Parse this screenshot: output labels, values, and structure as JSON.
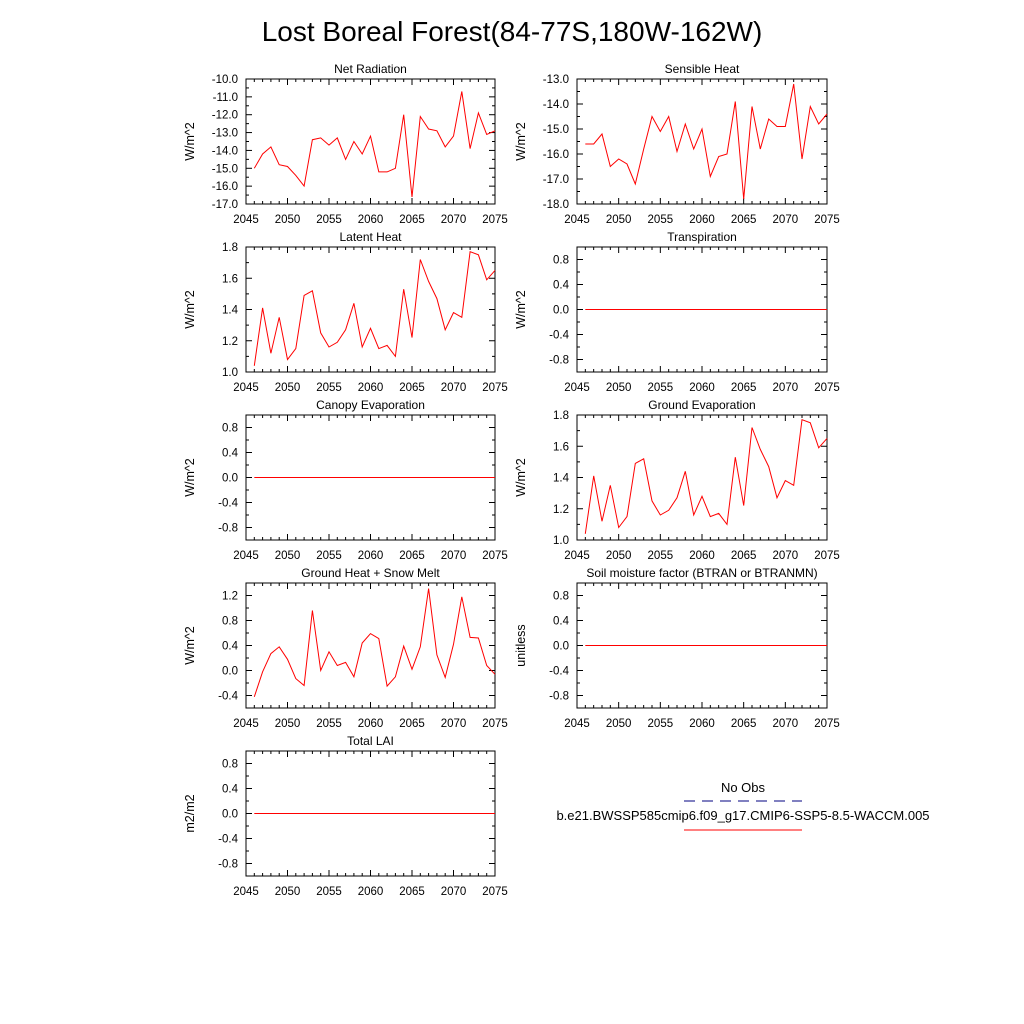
{
  "title": "Lost Boreal Forest(84-77S,180W-162W)",
  "colors": {
    "model_line": "#ff0000",
    "obs_line": "#000080",
    "axis": "#000000"
  },
  "legend": {
    "obs_label": "No Obs",
    "model_label": "b.e21.BWSSP585cmip6.f09_g17.CMIP6-SSP5-8.5-WACCM.005"
  },
  "chart_data": [
    {
      "type": "line",
      "title": "Net Radiation",
      "ylabel": "W/m^2",
      "xlim": [
        2045,
        2075
      ],
      "ylim": [
        -17.0,
        -10.0
      ],
      "xticks": [
        "2045",
        "2050",
        "2055",
        "2060",
        "2065",
        "2070",
        "2075"
      ],
      "yticks": [
        "-17.0",
        "-16.0",
        "-15.0",
        "-14.0",
        "-13.0",
        "-12.0",
        "-11.0",
        "-10.0"
      ],
      "series": [
        {
          "x": [
            2046,
            2047,
            2048,
            2049,
            2050,
            2051,
            2052,
            2053,
            2054,
            2055,
            2056,
            2057,
            2058,
            2059,
            2060,
            2061,
            2062,
            2063,
            2064,
            2065,
            2066,
            2067,
            2068,
            2069,
            2070,
            2071,
            2072,
            2073,
            2074,
            2075
          ],
          "values": [
            -15.0,
            -14.2,
            -13.8,
            -14.8,
            -14.9,
            -15.4,
            -16.0,
            -13.4,
            -13.3,
            -13.7,
            -13.3,
            -14.5,
            -13.5,
            -14.2,
            -13.2,
            -15.2,
            -15.2,
            -15.0,
            -12.0,
            -16.6,
            -12.1,
            -12.8,
            -12.9,
            -13.8,
            -13.2,
            -10.7,
            -13.9,
            -11.9,
            -13.1,
            -12.9
          ]
        }
      ]
    },
    {
      "type": "line",
      "title": "Sensible Heat",
      "ylabel": "W/m^2",
      "xlim": [
        2045,
        2075
      ],
      "ylim": [
        -18.0,
        -13.0
      ],
      "xticks": [
        "2045",
        "2050",
        "2055",
        "2060",
        "2065",
        "2070",
        "2075"
      ],
      "yticks": [
        "-18.0",
        "-17.0",
        "-16.0",
        "-15.0",
        "-14.0",
        "-13.0"
      ],
      "series": [
        {
          "x": [
            2046,
            2047,
            2048,
            2049,
            2050,
            2051,
            2052,
            2053,
            2054,
            2055,
            2056,
            2057,
            2058,
            2059,
            2060,
            2061,
            2062,
            2063,
            2064,
            2065,
            2066,
            2067,
            2068,
            2069,
            2070,
            2071,
            2072,
            2073,
            2074,
            2075
          ],
          "values": [
            -15.6,
            -15.6,
            -15.2,
            -16.5,
            -16.2,
            -16.4,
            -17.2,
            -15.8,
            -14.5,
            -15.1,
            -14.5,
            -15.9,
            -14.8,
            -15.8,
            -15.0,
            -16.9,
            -16.1,
            -16.0,
            -13.9,
            -17.8,
            -14.1,
            -15.8,
            -14.6,
            -14.9,
            -14.9,
            -13.2,
            -16.2,
            -14.1,
            -14.8,
            -14.4
          ]
        }
      ]
    },
    {
      "type": "line",
      "title": "Latent Heat",
      "ylabel": "W/m^2",
      "xlim": [
        2045,
        2075
      ],
      "ylim": [
        1.0,
        1.8
      ],
      "xticks": [
        "2045",
        "2050",
        "2055",
        "2060",
        "2065",
        "2070",
        "2075"
      ],
      "yticks": [
        "1.0",
        "1.2",
        "1.4",
        "1.6",
        "1.8"
      ],
      "series": [
        {
          "x": [
            2046,
            2047,
            2048,
            2049,
            2050,
            2051,
            2052,
            2053,
            2054,
            2055,
            2056,
            2057,
            2058,
            2059,
            2060,
            2061,
            2062,
            2063,
            2064,
            2065,
            2066,
            2067,
            2068,
            2069,
            2070,
            2071,
            2072,
            2073,
            2074,
            2075
          ],
          "values": [
            1.04,
            1.41,
            1.12,
            1.35,
            1.08,
            1.15,
            1.49,
            1.52,
            1.25,
            1.16,
            1.19,
            1.27,
            1.44,
            1.16,
            1.28,
            1.15,
            1.17,
            1.1,
            1.53,
            1.22,
            1.72,
            1.58,
            1.47,
            1.27,
            1.38,
            1.35,
            1.77,
            1.75,
            1.59,
            1.65
          ]
        }
      ]
    },
    {
      "type": "line",
      "title": "Transpiration",
      "ylabel": "W/m^2",
      "xlim": [
        2045,
        2075
      ],
      "ylim": [
        -1.0,
        1.0
      ],
      "xticks": [
        "2045",
        "2050",
        "2055",
        "2060",
        "2065",
        "2070",
        "2075"
      ],
      "yticks": [
        "-0.8",
        "-0.4",
        "0.0",
        "0.4",
        "0.8"
      ],
      "series": [
        {
          "x": [
            2046,
            2075
          ],
          "values": [
            0.0,
            0.0
          ]
        }
      ]
    },
    {
      "type": "line",
      "title": "Canopy Evaporation",
      "ylabel": "W/m^2",
      "xlim": [
        2045,
        2075
      ],
      "ylim": [
        -1.0,
        1.0
      ],
      "xticks": [
        "2045",
        "2050",
        "2055",
        "2060",
        "2065",
        "2070",
        "2075"
      ],
      "yticks": [
        "-0.8",
        "-0.4",
        "0.0",
        "0.4",
        "0.8"
      ],
      "series": [
        {
          "x": [
            2046,
            2075
          ],
          "values": [
            0.0,
            0.0
          ]
        }
      ]
    },
    {
      "type": "line",
      "title": "Ground Evaporation",
      "ylabel": "W/m^2",
      "xlim": [
        2045,
        2075
      ],
      "ylim": [
        1.0,
        1.8
      ],
      "xticks": [
        "2045",
        "2050",
        "2055",
        "2060",
        "2065",
        "2070",
        "2075"
      ],
      "yticks": [
        "1.0",
        "1.2",
        "1.4",
        "1.6",
        "1.8"
      ],
      "series": [
        {
          "x": [
            2046,
            2047,
            2048,
            2049,
            2050,
            2051,
            2052,
            2053,
            2054,
            2055,
            2056,
            2057,
            2058,
            2059,
            2060,
            2061,
            2062,
            2063,
            2064,
            2065,
            2066,
            2067,
            2068,
            2069,
            2070,
            2071,
            2072,
            2073,
            2074,
            2075
          ],
          "values": [
            1.04,
            1.41,
            1.12,
            1.35,
            1.08,
            1.15,
            1.49,
            1.52,
            1.25,
            1.16,
            1.19,
            1.27,
            1.44,
            1.16,
            1.28,
            1.15,
            1.17,
            1.1,
            1.53,
            1.22,
            1.72,
            1.58,
            1.47,
            1.27,
            1.38,
            1.35,
            1.77,
            1.75,
            1.59,
            1.65
          ]
        }
      ]
    },
    {
      "type": "line",
      "title": "Ground Heat + Snow Melt",
      "ylabel": "W/m^2",
      "xlim": [
        2045,
        2075
      ],
      "ylim": [
        -0.6,
        1.4
      ],
      "xticks": [
        "2045",
        "2050",
        "2055",
        "2060",
        "2065",
        "2070",
        "2075"
      ],
      "yticks": [
        "-0.4",
        "0.0",
        "0.4",
        "0.8",
        "1.2"
      ],
      "series": [
        {
          "x": [
            2046,
            2047,
            2048,
            2049,
            2050,
            2051,
            2052,
            2053,
            2054,
            2055,
            2056,
            2057,
            2058,
            2059,
            2060,
            2061,
            2062,
            2063,
            2064,
            2065,
            2066,
            2067,
            2068,
            2069,
            2070,
            2071,
            2072,
            2073,
            2074,
            2075
          ],
          "values": [
            -0.42,
            -0.02,
            0.27,
            0.38,
            0.18,
            -0.13,
            -0.24,
            0.96,
            0.0,
            0.3,
            0.08,
            0.13,
            -0.1,
            0.44,
            0.59,
            0.51,
            -0.25,
            -0.1,
            0.39,
            0.02,
            0.38,
            1.31,
            0.25,
            -0.11,
            0.42,
            1.18,
            0.53,
            0.52,
            0.08,
            -0.06
          ]
        }
      ]
    },
    {
      "type": "line",
      "title": "Soil moisture factor (BTRAN or BTRANMN)",
      "ylabel": "unitless",
      "xlim": [
        2045,
        2075
      ],
      "ylim": [
        -1.0,
        1.0
      ],
      "xticks": [
        "2045",
        "2050",
        "2055",
        "2060",
        "2065",
        "2070",
        "2075"
      ],
      "yticks": [
        "-0.8",
        "-0.4",
        "0.0",
        "0.4",
        "0.8"
      ],
      "series": [
        {
          "x": [
            2046,
            2075
          ],
          "values": [
            0.0,
            0.0
          ]
        }
      ]
    },
    {
      "type": "line",
      "title": "Total LAI",
      "ylabel": "m2/m2",
      "xlim": [
        2045,
        2075
      ],
      "ylim": [
        -1.0,
        1.0
      ],
      "xticks": [
        "2045",
        "2050",
        "2055",
        "2060",
        "2065",
        "2070",
        "2075"
      ],
      "yticks": [
        "-0.8",
        "-0.4",
        "0.0",
        "0.4",
        "0.8"
      ],
      "series": [
        {
          "x": [
            2046,
            2075
          ],
          "values": [
            0.0,
            0.0
          ]
        }
      ]
    }
  ]
}
